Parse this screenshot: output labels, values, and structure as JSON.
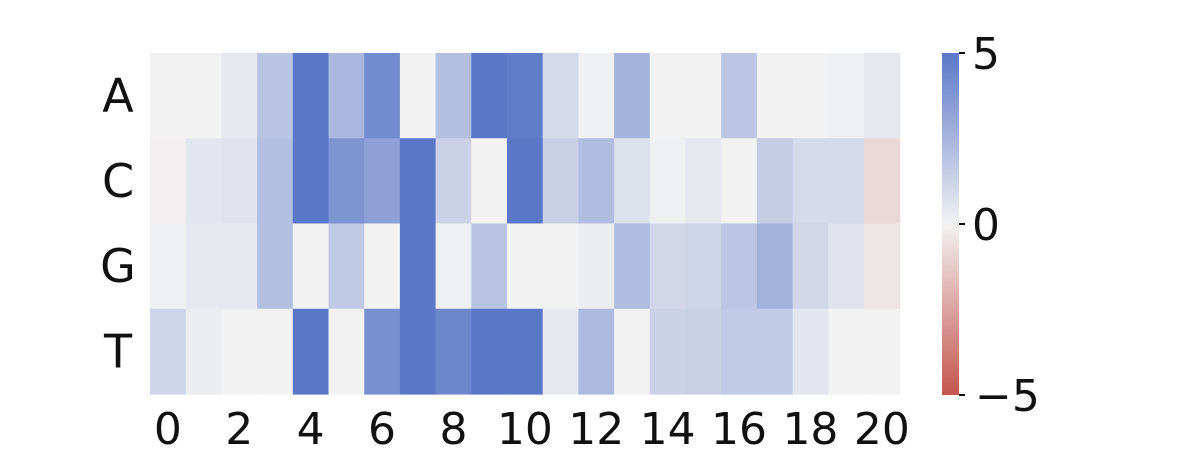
{
  "chart_data": {
    "type": "heatmap",
    "title": "",
    "xlabel": "",
    "ylabel": "",
    "rows": [
      "A",
      "C",
      "G",
      "T"
    ],
    "columns": [
      0,
      1,
      2,
      3,
      4,
      5,
      6,
      7,
      8,
      9,
      10,
      11,
      12,
      13,
      14,
      15,
      16,
      17,
      18,
      19,
      20
    ],
    "x_tick_labels": [
      "0",
      "2",
      "4",
      "6",
      "8",
      "10",
      "12",
      "14",
      "16",
      "18",
      "20"
    ],
    "values": [
      [
        0.0,
        0.0,
        0.4,
        1.9,
        5.0,
        2.4,
        4.2,
        0.0,
        2.1,
        5.0,
        4.8,
        1.0,
        0.1,
        2.6,
        0.0,
        0.0,
        1.8,
        0.0,
        0.0,
        0.1,
        0.4
      ],
      [
        -0.1,
        0.5,
        0.6,
        2.1,
        5.0,
        3.8,
        3.3,
        5.0,
        1.3,
        0.0,
        5.0,
        1.4,
        2.2,
        0.7,
        0.1,
        0.4,
        0.0,
        1.5,
        1.0,
        1.0,
        -0.8
      ],
      [
        0.1,
        0.4,
        0.4,
        2.1,
        0.0,
        1.7,
        0.0,
        5.0,
        0.1,
        1.9,
        0.0,
        0.0,
        0.2,
        2.2,
        1.1,
        1.2,
        1.8,
        2.6,
        1.1,
        0.6,
        -0.4
      ],
      [
        1.2,
        0.2,
        0.0,
        0.0,
        5.0,
        0.0,
        4.0,
        5.0,
        4.4,
        5.0,
        5.0,
        0.4,
        2.3,
        0.0,
        1.3,
        1.4,
        1.6,
        1.6,
        0.5,
        0.0,
        0.0
      ]
    ],
    "colorbar": {
      "min": -5,
      "max": 5,
      "tick_labels": [
        "5",
        "0",
        "−5"
      ],
      "colors": {
        "low": "#c4554d",
        "mid": "#f2f2f2",
        "high": "#5b78c8"
      }
    }
  }
}
